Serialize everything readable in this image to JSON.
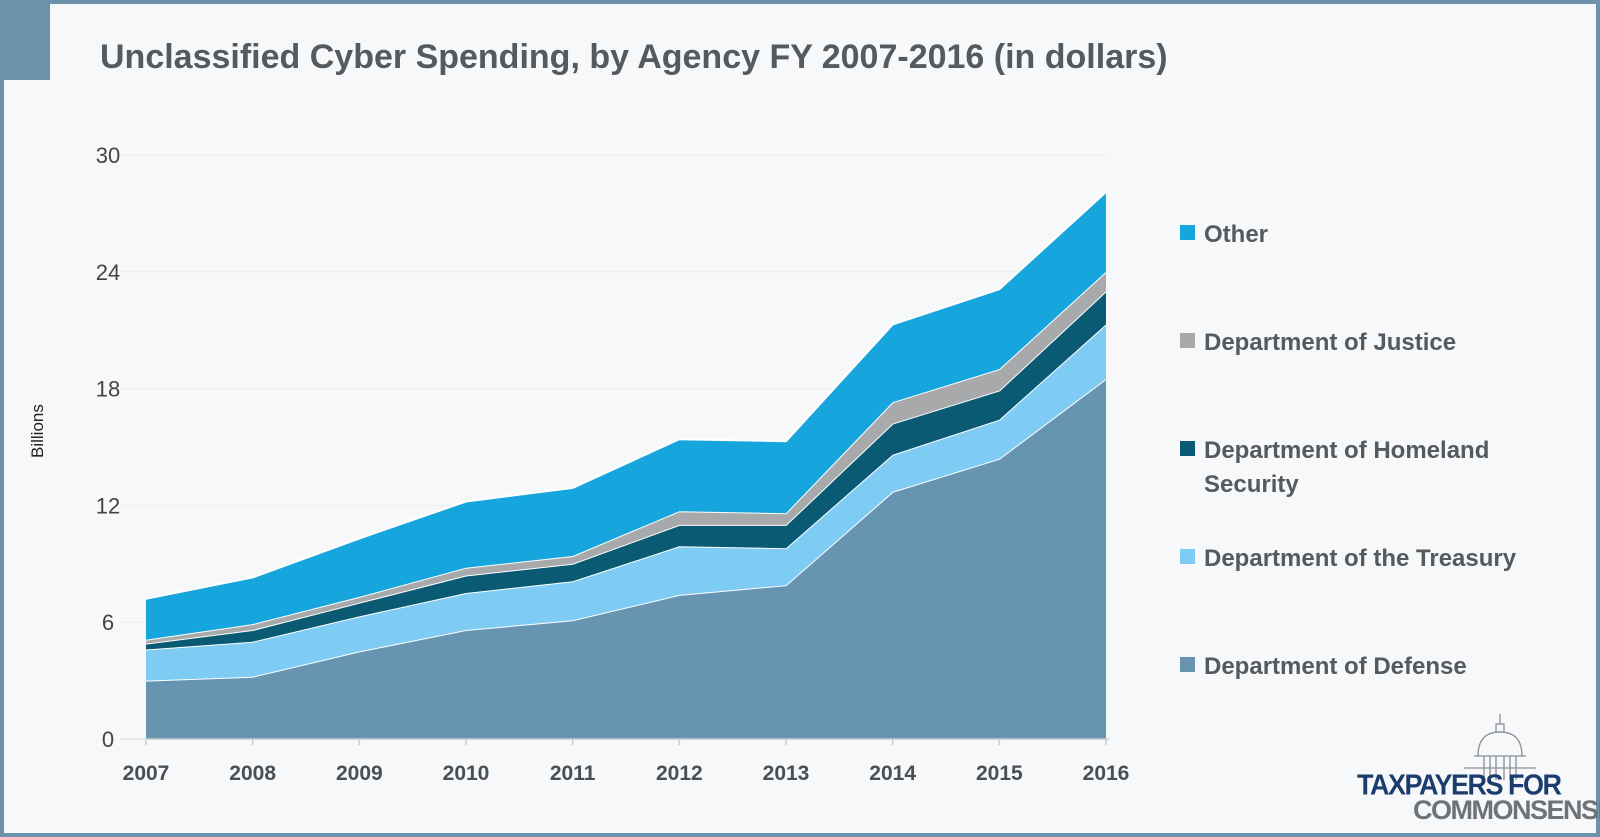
{
  "chart_data": {
    "type": "area",
    "stacked": true,
    "title": "Unclassified Cyber Spending, by Agency FY 2007-2016 (in dollars)",
    "ylabel": "Billions",
    "ylim": [
      0,
      30
    ],
    "yticks": [
      0,
      6,
      12,
      18,
      24,
      30
    ],
    "x": [
      "2007",
      "2008",
      "2009",
      "2010",
      "2011",
      "2012",
      "2013",
      "2014",
      "2015",
      "2016"
    ],
    "legend_position": "right",
    "series": [
      {
        "name": "Department of Defense",
        "color": "#6795b1",
        "values": [
          3.0,
          3.2,
          4.5,
          5.6,
          6.1,
          7.4,
          7.9,
          12.7,
          14.4,
          18.5
        ]
      },
      {
        "name": "Department of the Treasury",
        "color": "#7ecbf3",
        "values": [
          1.6,
          1.8,
          1.8,
          1.9,
          2.0,
          2.5,
          1.9,
          1.9,
          2.0,
          2.8
        ]
      },
      {
        "name": "Department of Homeland Security",
        "color": "#0b5a73",
        "values": [
          0.3,
          0.6,
          0.7,
          0.9,
          0.9,
          1.1,
          1.2,
          1.6,
          1.5,
          1.7
        ]
      },
      {
        "name": "Department of Justice",
        "color": "#a8a9ab",
        "values": [
          0.2,
          0.3,
          0.3,
          0.4,
          0.4,
          0.7,
          0.6,
          1.1,
          1.1,
          1.0
        ]
      },
      {
        "name": "Other",
        "color": "#16a5dc",
        "values": [
          2.1,
          2.4,
          3.0,
          3.4,
          3.5,
          3.7,
          3.7,
          4.0,
          4.1,
          4.1
        ]
      }
    ],
    "legend": [
      {
        "label": "Other",
        "color": "#16a5dc"
      },
      {
        "label": "Department of Justice",
        "color": "#a8a9ab"
      },
      {
        "label": "Department of Homeland Security",
        "color": "#0b5a73"
      },
      {
        "label": "Department of the Treasury",
        "color": "#7ecbf3"
      },
      {
        "label": "Department of Defense",
        "color": "#6795b1"
      }
    ]
  },
  "logo": {
    "line1": "TAXPAYERS FOR",
    "line2": "COMMONSENSE"
  }
}
